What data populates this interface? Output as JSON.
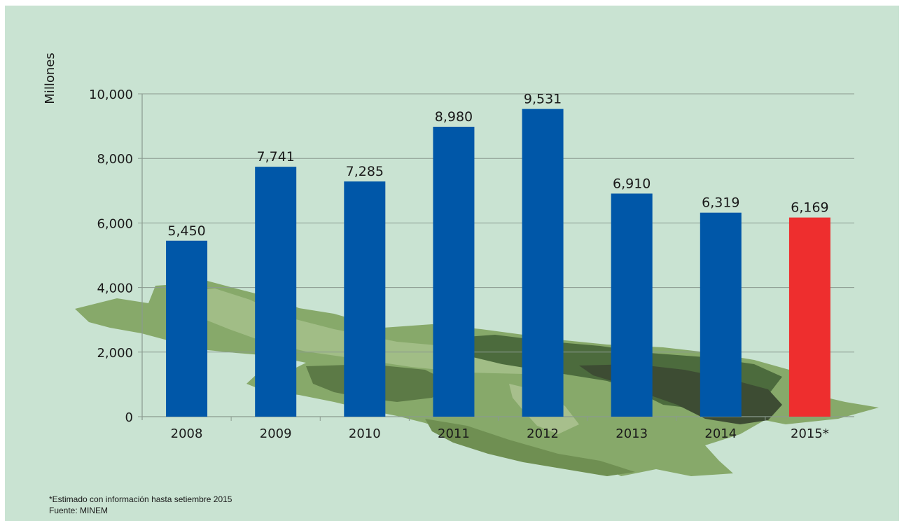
{
  "chart_data": {
    "type": "bar",
    "ylabel": "Millones",
    "xlabel": "",
    "ylim": [
      0,
      10000
    ],
    "yticks": [
      0,
      2000,
      4000,
      6000,
      8000,
      10000
    ],
    "ytick_labels": [
      "0",
      "2,000",
      "4,000",
      "6,000",
      "8,000",
      "10,000"
    ],
    "categories": [
      "2008",
      "2009",
      "2010",
      "2011",
      "2012",
      "2013",
      "2014",
      "2015*"
    ],
    "values": [
      5450,
      7741,
      7285,
      8980,
      9531,
      6910,
      6319,
      6169
    ],
    "value_labels": [
      "5,450",
      "7,741",
      "7,285",
      "8,980",
      "9,531",
      "6,910",
      "6,319",
      "6,169"
    ],
    "colors": [
      "#0057a8",
      "#0057a8",
      "#0057a8",
      "#0057a8",
      "#0057a8",
      "#0057a8",
      "#0057a8",
      "#ee2e2e"
    ],
    "grid": true,
    "legend": "none"
  },
  "footnote": "*Estimado con información hasta setiembre 2015",
  "source": "Fuente: MINEM",
  "colors": {
    "background": "#c9e3d2",
    "bar": "#0057a8",
    "bar_estimate": "#ee2e2e",
    "gridline": "#8a9a8f"
  }
}
